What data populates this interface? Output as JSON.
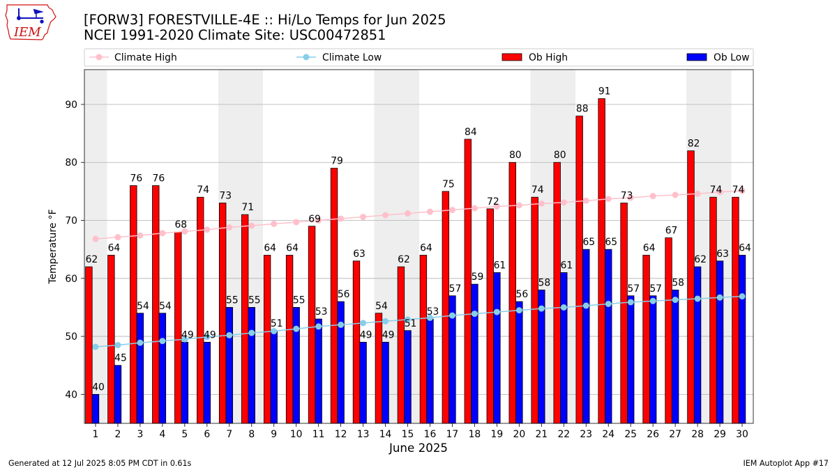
{
  "logo": {
    "text": "IEM"
  },
  "footer": {
    "generated": "Generated at 12 Jul 2025 8:05 PM CDT in 0.61s",
    "app": "IEM Autoplot App #17"
  },
  "chart_data": {
    "type": "bar",
    "title": "[FORW3] FORESTVILLE-4E :: Hi/Lo Temps for Jun 2025",
    "subtitle": "NCEI 1991-2020 Climate Site: USC00472851",
    "xlabel": "June 2025",
    "ylabel": "Temperature °F",
    "categories": [
      "1",
      "2",
      "3",
      "4",
      "5",
      "6",
      "7",
      "8",
      "9",
      "10",
      "11",
      "12",
      "13",
      "14",
      "15",
      "16",
      "17",
      "18",
      "19",
      "20",
      "21",
      "22",
      "23",
      "24",
      "25",
      "26",
      "27",
      "28",
      "29",
      "30"
    ],
    "xlim": [
      0.5,
      30.5
    ],
    "ylim": [
      35,
      96
    ],
    "yticks": [
      40,
      50,
      60,
      70,
      80,
      90
    ],
    "grid": true,
    "legend": "top",
    "weekend_days": [
      1,
      7,
      8,
      14,
      15,
      21,
      22,
      28,
      29
    ],
    "lines": [
      {
        "name": "Climate High",
        "color": "#ffc0cb",
        "values": [
          66.8,
          67.1,
          67.4,
          67.8,
          68.1,
          68.4,
          68.8,
          69.1,
          69.4,
          69.7,
          70.0,
          70.3,
          70.6,
          70.9,
          71.2,
          71.5,
          71.8,
          72.1,
          72.4,
          72.6,
          72.9,
          73.1,
          73.4,
          73.7,
          73.9,
          74.2,
          74.4,
          74.6,
          74.9,
          75.1
        ]
      },
      {
        "name": "Climate Low",
        "color": "#87ceeb",
        "values": [
          48.2,
          48.5,
          48.9,
          49.2,
          49.5,
          49.9,
          50.2,
          50.6,
          50.9,
          51.3,
          51.7,
          52.0,
          52.3,
          52.6,
          52.9,
          53.2,
          53.6,
          53.9,
          54.2,
          54.5,
          54.8,
          55.0,
          55.3,
          55.6,
          55.9,
          56.1,
          56.3,
          56.5,
          56.7,
          56.9
        ]
      }
    ],
    "series": [
      {
        "name": "Ob High",
        "color": "#ff0000",
        "values": [
          62,
          64,
          76,
          76,
          68,
          74,
          73,
          71,
          64,
          64,
          69,
          79,
          63,
          54,
          62,
          64,
          75,
          84,
          72,
          80,
          74,
          80,
          88,
          91,
          73,
          64,
          67,
          82,
          74,
          74
        ]
      },
      {
        "name": "Ob Low",
        "color": "#0000ff",
        "values": [
          40,
          45,
          54,
          54,
          49,
          49,
          55,
          55,
          51,
          55,
          53,
          56,
          49,
          49,
          51,
          53,
          57,
          59,
          61,
          56,
          58,
          61,
          65,
          65,
          57,
          57,
          58,
          62,
          63,
          64
        ]
      }
    ]
  }
}
